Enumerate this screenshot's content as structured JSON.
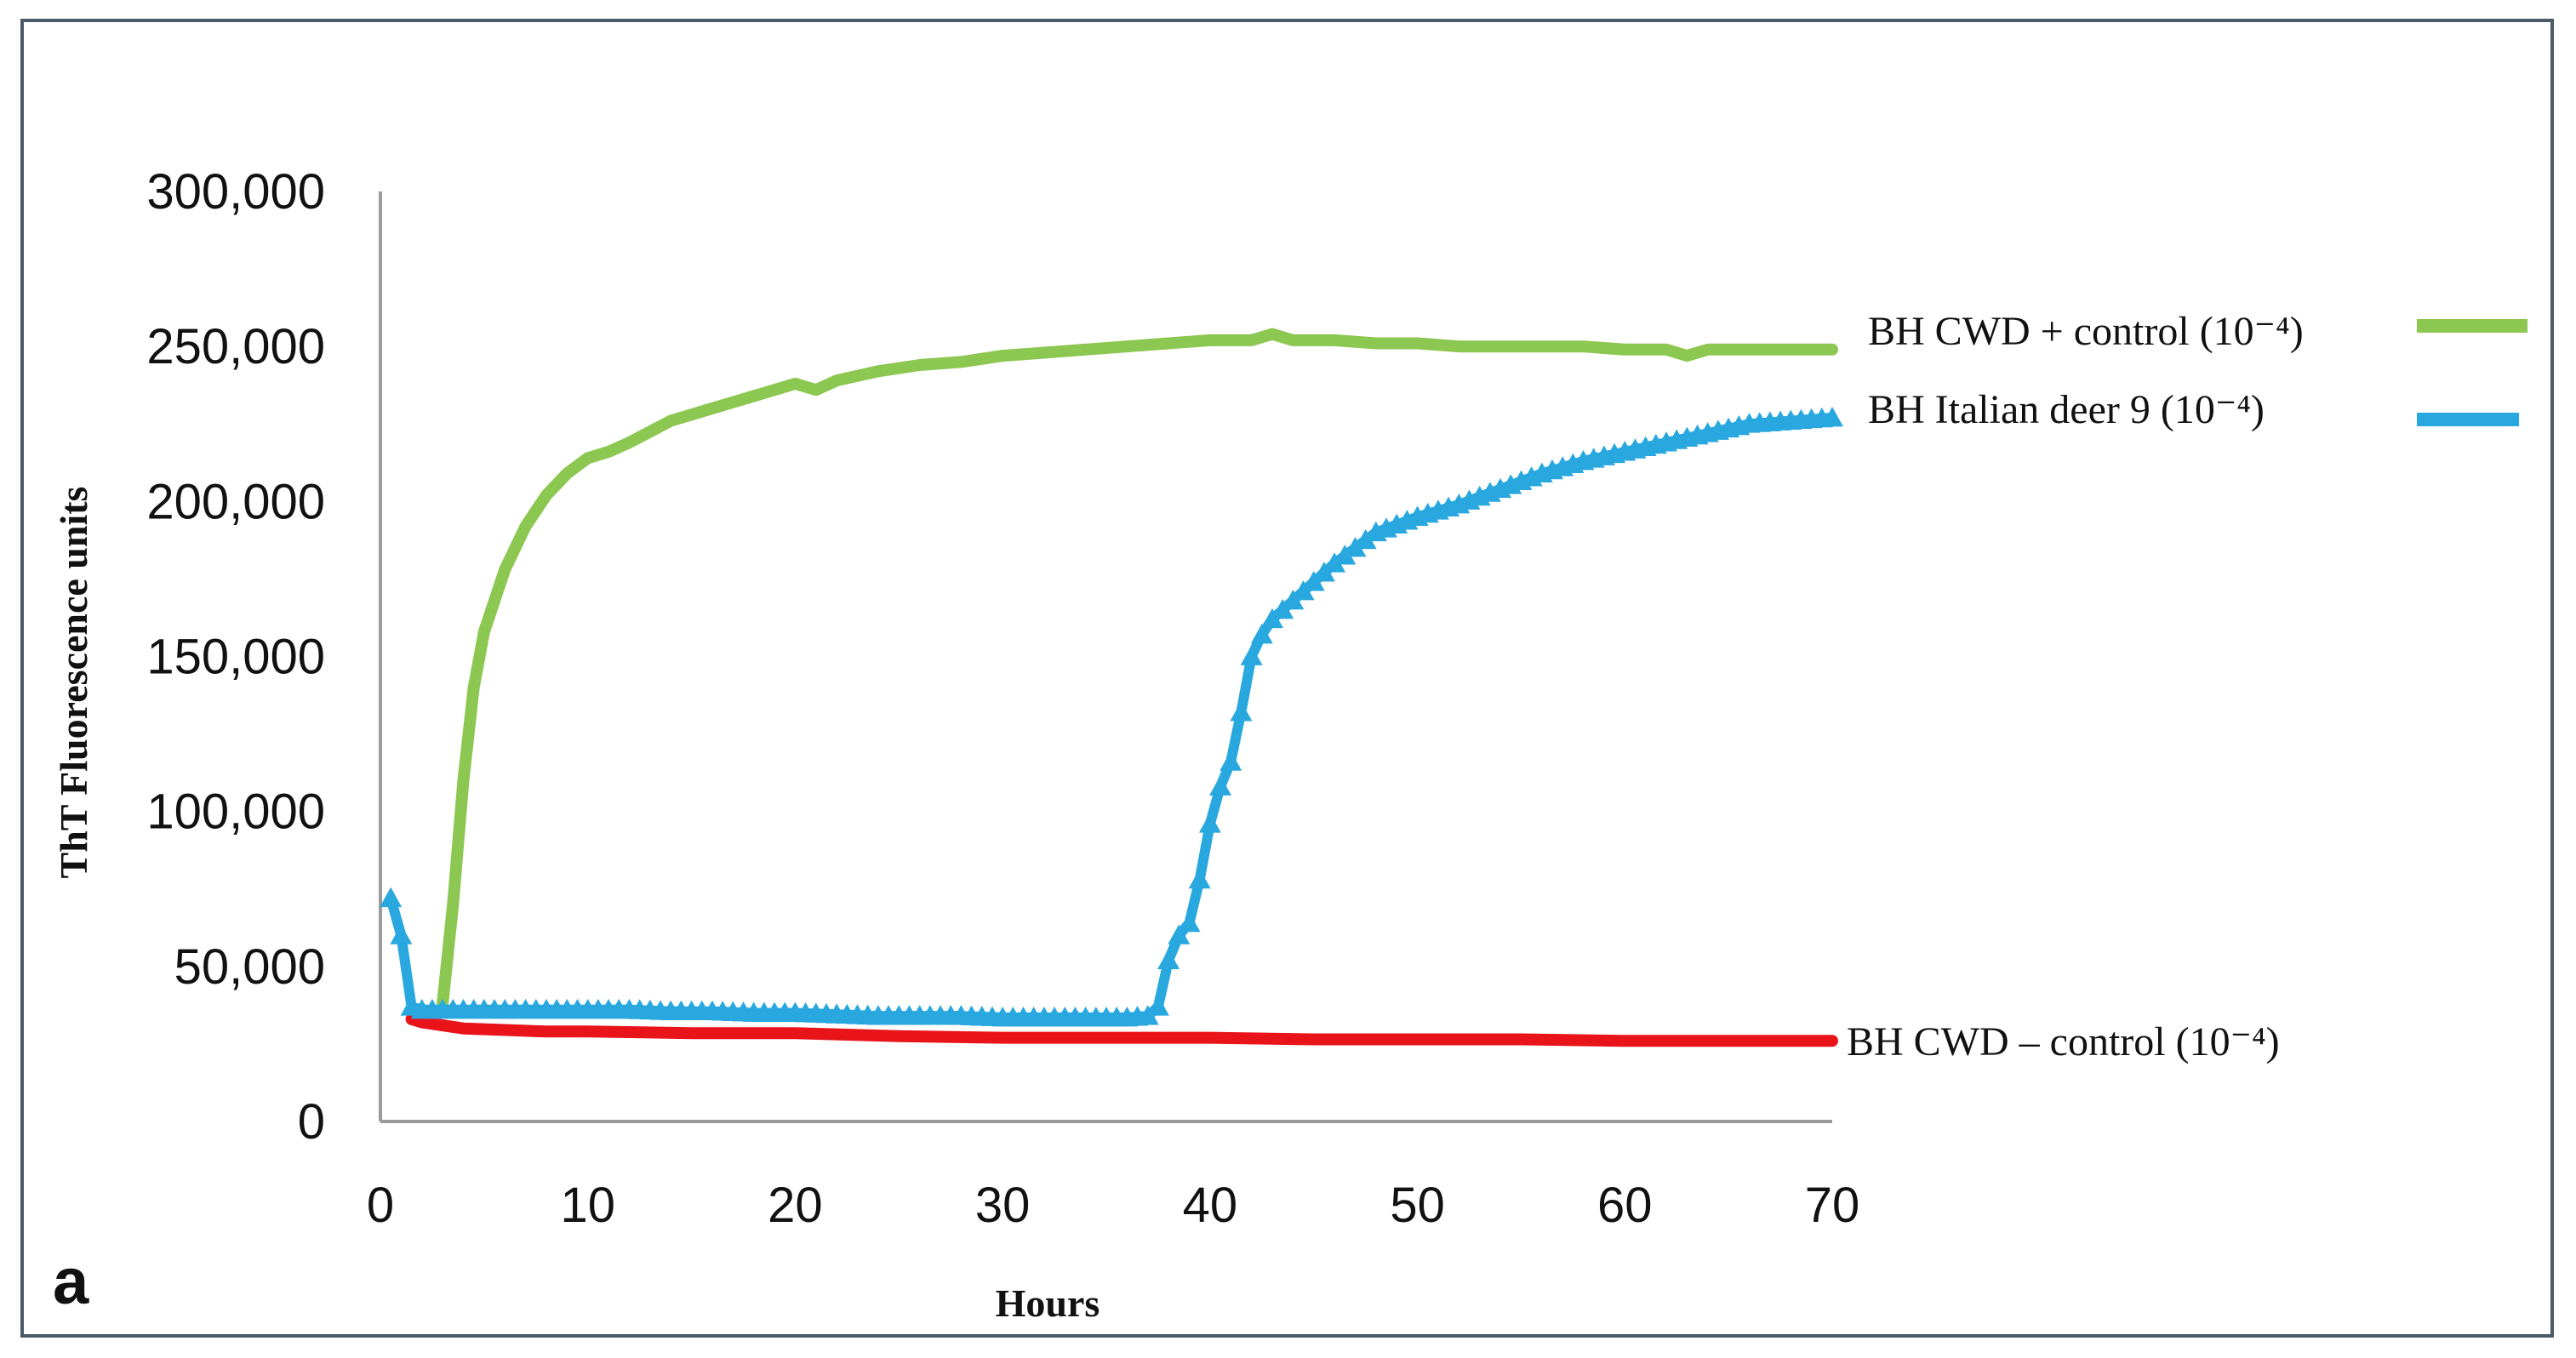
{
  "panel_label": "a",
  "chart_data": {
    "type": "line",
    "xlabel": "Hours",
    "ylabel": "ThT Fluorescence units",
    "xlim": [
      0,
      70
    ],
    "ylim": [
      0,
      300000
    ],
    "x_ticks": [
      "0",
      "10",
      "20",
      "30",
      "40",
      "50",
      "60",
      "70"
    ],
    "y_ticks": [
      "0",
      "50,000",
      "100,000",
      "150,000",
      "200,000",
      "250,000",
      "300,000"
    ],
    "grid": false,
    "legend_placement": "right, beside series ends",
    "series": [
      {
        "name": "BH CWD + control (10⁻⁴)",
        "color": "#8cc751",
        "marker": "none",
        "x": [
          3,
          3.5,
          4,
          4.5,
          5,
          6,
          7,
          8,
          9,
          10,
          11,
          12,
          14,
          16,
          18,
          20,
          21,
          22,
          24,
          26,
          28,
          30,
          32,
          34,
          36,
          38,
          40,
          42,
          43,
          44,
          46,
          48,
          50,
          52,
          54,
          56,
          58,
          60,
          62,
          63,
          64,
          66,
          68,
          70
        ],
        "y": [
          38000,
          70000,
          110000,
          140000,
          158000,
          178000,
          192000,
          202000,
          209000,
          214000,
          216000,
          219000,
          226000,
          230000,
          234000,
          238000,
          236000,
          239000,
          242000,
          244000,
          245000,
          247000,
          248000,
          249000,
          250000,
          251000,
          252000,
          252000,
          254000,
          252000,
          252000,
          251000,
          251000,
          250000,
          250000,
          250000,
          250000,
          249000,
          249000,
          247000,
          249000,
          249000,
          249000,
          249000
        ]
      },
      {
        "name": "BH Italian deer 9 (10⁻⁴)",
        "color": "#29a8e0",
        "marker": "triangle",
        "x": [
          0.5,
          1,
          1.5,
          2,
          4,
          6,
          8,
          10,
          12,
          14,
          16,
          18,
          20,
          22,
          24,
          26,
          28,
          30,
          32,
          34,
          36,
          37,
          37.5,
          38,
          38.5,
          39,
          39.5,
          40,
          40.5,
          41,
          41.5,
          42,
          42.5,
          43,
          44,
          45,
          46,
          47,
          48,
          50,
          52,
          54,
          56,
          58,
          60,
          62,
          64,
          66,
          68,
          70
        ],
        "y": [
          72000,
          60000,
          37000,
          36000,
          36000,
          36000,
          36000,
          36000,
          36000,
          35500,
          35500,
          35000,
          35000,
          34500,
          34000,
          34000,
          34000,
          33500,
          33500,
          33500,
          33500,
          34000,
          37000,
          52000,
          60000,
          64000,
          78000,
          96000,
          108000,
          116000,
          132000,
          150000,
          157000,
          162000,
          168000,
          174000,
          180000,
          185000,
          190000,
          195000,
          199000,
          204000,
          209000,
          213000,
          216000,
          219000,
          222000,
          225000,
          226000,
          227000
        ]
      },
      {
        "name": "BH CWD – control (10⁻⁴)",
        "color": "#e8141a",
        "marker": "none",
        "x": [
          1.5,
          2,
          4,
          6,
          8,
          10,
          15,
          20,
          25,
          30,
          35,
          40,
          45,
          50,
          55,
          60,
          65,
          70
        ],
        "y": [
          33000,
          32000,
          30000,
          29500,
          29000,
          29000,
          28500,
          28500,
          27500,
          27000,
          27000,
          27000,
          26500,
          26500,
          26500,
          26000,
          26000,
          26000
        ]
      }
    ]
  }
}
